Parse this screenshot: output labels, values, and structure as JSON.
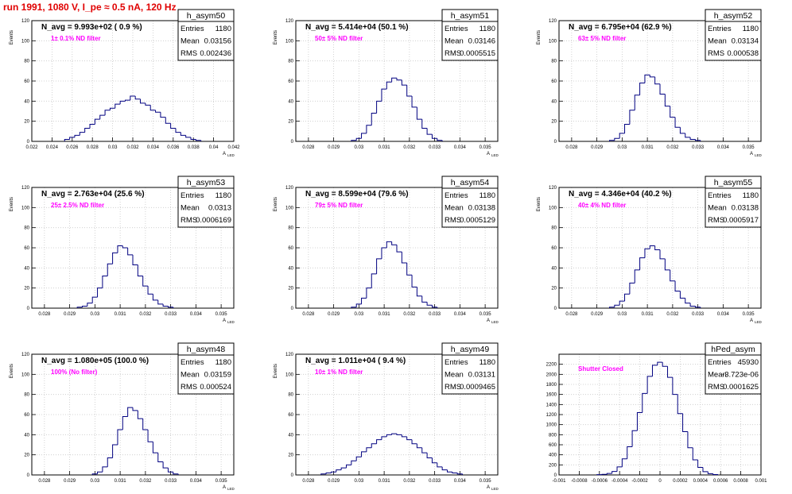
{
  "page": {
    "title": "run 1991,  1080 V, I_pe ≈ 0.5 nA, 120 Hz"
  },
  "colors": {
    "hist": "#000080",
    "magenta": "#ff00ff",
    "title_red": "#e00000",
    "grid": "#c8c8c8"
  },
  "chart_data": [
    {
      "type": "bar",
      "name": "h_asym50",
      "ylabel": "Events",
      "xlabel": "A_{LED}",
      "nav": "N_avg = 9.993e+02 ( 0.9 %)",
      "filter": "1± 0.1% ND filter",
      "stats": {
        "entries": "1180",
        "mean": "0.03156",
        "rms": "0.002436"
      },
      "xlim": [
        0.022,
        0.042
      ],
      "ylim": [
        0,
        120
      ],
      "xticks": [
        "0.022",
        "0.024",
        "0.026",
        "0.028",
        "0.03",
        "0.032",
        "0.034",
        "0.036",
        "0.038",
        "0.04",
        "0.042"
      ],
      "yticks": [
        "0",
        "20",
        "40",
        "60",
        "80",
        "100",
        "120"
      ],
      "x": [
        0.0255,
        0.026,
        0.0265,
        0.027,
        0.0275,
        0.028,
        0.0285,
        0.029,
        0.0295,
        0.03,
        0.0305,
        0.031,
        0.0315,
        0.032,
        0.0325,
        0.033,
        0.0335,
        0.034,
        0.0345,
        0.035,
        0.0355,
        0.036,
        0.0365,
        0.037,
        0.0375,
        0.038,
        0.0385
      ],
      "values": [
        2,
        4,
        6,
        9,
        13,
        17,
        22,
        26,
        31,
        33,
        37,
        40,
        41,
        45,
        42,
        38,
        36,
        31,
        29,
        24,
        18,
        13,
        9,
        6,
        4,
        2,
        1
      ]
    },
    {
      "type": "bar",
      "name": "h_asym51",
      "ylabel": "Events",
      "xlabel": "A_{LED}",
      "nav": "N_avg = 5.414e+04 (50.1 %)",
      "filter": "50± 5% ND filter",
      "stats": {
        "entries": "1180",
        "mean": "0.03146",
        "rms": "0.0005515"
      },
      "xlim": [
        0.0275,
        0.0355
      ],
      "ylim": [
        0,
        120
      ],
      "xticks": [
        "0.028",
        "0.029",
        "0.03",
        "0.031",
        "0.032",
        "0.033",
        "0.034",
        "0.035"
      ],
      "yticks": [
        "0",
        "20",
        "40",
        "60",
        "80",
        "100",
        "120"
      ],
      "x": [
        0.0298,
        0.03,
        0.0302,
        0.0304,
        0.0306,
        0.0308,
        0.031,
        0.0312,
        0.0314,
        0.0316,
        0.0318,
        0.032,
        0.0322,
        0.0324,
        0.0326,
        0.0328,
        0.033,
        0.0332
      ],
      "values": [
        1,
        3,
        8,
        16,
        28,
        40,
        52,
        59,
        63,
        61,
        56,
        45,
        34,
        22,
        13,
        7,
        3,
        1
      ]
    },
    {
      "type": "bar",
      "name": "h_asym52",
      "ylabel": "Events",
      "xlabel": "A_{LED}",
      "nav": "N_avg = 6.795e+04 (62.9 %)",
      "filter": "63± 5% ND filter",
      "stats": {
        "entries": "1180",
        "mean": "0.03134",
        "rms": "0.000538"
      },
      "xlim": [
        0.0275,
        0.0355
      ],
      "ylim": [
        0,
        120
      ],
      "xticks": [
        "0.028",
        "0.029",
        "0.03",
        "0.031",
        "0.032",
        "0.033",
        "0.034",
        "0.035"
      ],
      "yticks": [
        "0",
        "20",
        "40",
        "60",
        "80",
        "100",
        "120"
      ],
      "x": [
        0.0296,
        0.0298,
        0.03,
        0.0302,
        0.0304,
        0.0306,
        0.0308,
        0.031,
        0.0312,
        0.0314,
        0.0316,
        0.0318,
        0.032,
        0.0322,
        0.0324,
        0.0326,
        0.0328,
        0.033
      ],
      "values": [
        1,
        3,
        8,
        17,
        31,
        46,
        58,
        66,
        64,
        57,
        47,
        35,
        24,
        14,
        8,
        4,
        2,
        1
      ]
    },
    {
      "type": "bar",
      "name": "h_asym53",
      "ylabel": "Events",
      "xlabel": "A_{LED}",
      "nav": "N_avg = 2.763e+04 (25.6 %)",
      "filter": "25± 2.5% ND filter",
      "stats": {
        "entries": "1180",
        "mean": "0.0313",
        "rms": "0.0006169"
      },
      "xlim": [
        0.0275,
        0.0355
      ],
      "ylim": [
        0,
        120
      ],
      "xticks": [
        "0.028",
        "0.029",
        "0.03",
        "0.031",
        "0.032",
        "0.033",
        "0.034",
        "0.035"
      ],
      "yticks": [
        "0",
        "20",
        "40",
        "60",
        "80",
        "100",
        "120"
      ],
      "x": [
        0.0294,
        0.0296,
        0.0298,
        0.03,
        0.0302,
        0.0304,
        0.0306,
        0.0308,
        0.031,
        0.0312,
        0.0314,
        0.0316,
        0.0318,
        0.032,
        0.0322,
        0.0324,
        0.0326,
        0.0328,
        0.033
      ],
      "values": [
        1,
        2,
        5,
        11,
        20,
        32,
        44,
        55,
        62,
        60,
        53,
        43,
        32,
        22,
        14,
        8,
        4,
        2,
        1
      ]
    },
    {
      "type": "bar",
      "name": "h_asym54",
      "ylabel": "Events",
      "xlabel": "A_{LED}",
      "nav": "N_avg = 8.599e+04 (79.6 %)",
      "filter": "79± 5% ND filter",
      "stats": {
        "entries": "1180",
        "mean": "0.03138",
        "rms": "0.0005129"
      },
      "xlim": [
        0.0275,
        0.0355
      ],
      "ylim": [
        0,
        120
      ],
      "xticks": [
        "0.028",
        "0.029",
        "0.03",
        "0.031",
        "0.032",
        "0.033",
        "0.034",
        "0.035"
      ],
      "yticks": [
        "0",
        "20",
        "40",
        "60",
        "80",
        "100",
        "120"
      ],
      "x": [
        0.0298,
        0.03,
        0.0302,
        0.0304,
        0.0306,
        0.0308,
        0.031,
        0.0312,
        0.0314,
        0.0316,
        0.0318,
        0.032,
        0.0322,
        0.0324,
        0.0326,
        0.0328,
        0.033
      ],
      "values": [
        1,
        4,
        10,
        20,
        34,
        49,
        60,
        66,
        63,
        56,
        45,
        33,
        21,
        12,
        6,
        3,
        1
      ]
    },
    {
      "type": "bar",
      "name": "h_asym55",
      "ylabel": "Events",
      "xlabel": "A_{LED}",
      "nav": "N_avg = 4.346e+04 (40.2 %)",
      "filter": "40± 4% ND filter",
      "stats": {
        "entries": "1180",
        "mean": "0.03138",
        "rms": "0.0005917"
      },
      "xlim": [
        0.0275,
        0.0355
      ],
      "ylim": [
        0,
        120
      ],
      "xticks": [
        "0.028",
        "0.029",
        "0.03",
        "0.031",
        "0.032",
        "0.033",
        "0.034",
        "0.035"
      ],
      "yticks": [
        "0",
        "20",
        "40",
        "60",
        "80",
        "100",
        "120"
      ],
      "x": [
        0.0296,
        0.0298,
        0.03,
        0.0302,
        0.0304,
        0.0306,
        0.0308,
        0.031,
        0.0312,
        0.0314,
        0.0316,
        0.0318,
        0.032,
        0.0322,
        0.0324,
        0.0326,
        0.0328,
        0.033
      ],
      "values": [
        1,
        3,
        7,
        14,
        25,
        38,
        50,
        59,
        62,
        58,
        49,
        38,
        27,
        17,
        10,
        5,
        2,
        1
      ]
    },
    {
      "type": "bar",
      "name": "h_asym48",
      "ylabel": "Events",
      "xlabel": "A_{LED}",
      "nav": "N_avg = 1.080e+05 (100.0 %)",
      "filter": "100% (No filter)",
      "stats": {
        "entries": "1180",
        "mean": "0.03159",
        "rms": "0.000524"
      },
      "xlim": [
        0.0275,
        0.0355
      ],
      "ylim": [
        0,
        120
      ],
      "xticks": [
        "0.028",
        "0.029",
        "0.03",
        "0.031",
        "0.032",
        "0.033",
        "0.034",
        "0.035"
      ],
      "yticks": [
        "0",
        "20",
        "40",
        "60",
        "80",
        "100",
        "120"
      ],
      "x": [
        0.03,
        0.0302,
        0.0304,
        0.0306,
        0.0308,
        0.031,
        0.0312,
        0.0314,
        0.0316,
        0.0318,
        0.032,
        0.0322,
        0.0324,
        0.0326,
        0.0328,
        0.033,
        0.0332
      ],
      "values": [
        1,
        3,
        8,
        17,
        30,
        45,
        58,
        67,
        64,
        56,
        45,
        33,
        22,
        13,
        7,
        3,
        1
      ]
    },
    {
      "type": "bar",
      "name": "h_asym49",
      "ylabel": "Events",
      "xlabel": "A_{LED}",
      "nav": "N_avg = 1.011e+04 ( 9.4 %)",
      "filter": "10± 1% ND filter",
      "stats": {
        "entries": "1180",
        "mean": "0.03131",
        "rms": "0.0009465"
      },
      "xlim": [
        0.0275,
        0.0355
      ],
      "ylim": [
        0,
        120
      ],
      "xticks": [
        "0.028",
        "0.029",
        "0.03",
        "0.031",
        "0.032",
        "0.033",
        "0.034",
        "0.035"
      ],
      "yticks": [
        "0",
        "20",
        "40",
        "60",
        "80",
        "100",
        "120"
      ],
      "x": [
        0.0286,
        0.0288,
        0.029,
        0.0292,
        0.0294,
        0.0296,
        0.0298,
        0.03,
        0.0302,
        0.0304,
        0.0306,
        0.0308,
        0.031,
        0.0312,
        0.0314,
        0.0316,
        0.0318,
        0.032,
        0.0322,
        0.0324,
        0.0326,
        0.0328,
        0.033,
        0.0332,
        0.0334,
        0.0336,
        0.0338,
        0.034
      ],
      "values": [
        1,
        2,
        3,
        5,
        7,
        10,
        14,
        18,
        23,
        27,
        31,
        35,
        38,
        40,
        41,
        40,
        38,
        35,
        31,
        27,
        22,
        17,
        12,
        8,
        5,
        3,
        2,
        1
      ]
    },
    {
      "type": "bar",
      "name": "hPed_asym",
      "ylabel": "",
      "xlabel": "",
      "nav": "",
      "filter": "Shutter Closed",
      "stats": {
        "entries": "45930",
        "mean": "-3.723e-06",
        "rms": "0.0001625"
      },
      "xlim": [
        -0.001,
        0.001
      ],
      "ylim": [
        0,
        2400
      ],
      "xticks": [
        "-0.001",
        "-0.0008",
        "-0.0006",
        "-0.0004",
        "-0.0002",
        "0",
        "0.0002",
        "0.0004",
        "0.0006",
        "0.0008",
        "0.001"
      ],
      "yticks": [
        "0",
        "200",
        "400",
        "600",
        "800",
        "1000",
        "1200",
        "1400",
        "1600",
        "1800",
        "2000",
        "2200"
      ],
      "x": [
        -0.0006,
        -0.00055,
        -0.0005,
        -0.00045,
        -0.0004,
        -0.00035,
        -0.0003,
        -0.00025,
        -0.0002,
        -0.00015,
        -0.0001,
        -5e-05,
        0,
        5e-05,
        0.0001,
        0.00015,
        0.0002,
        0.00025,
        0.0003,
        0.00035,
        0.0004,
        0.00045,
        0.0005,
        0.00055
      ],
      "values": [
        5,
        12,
        30,
        70,
        160,
        320,
        560,
        880,
        1240,
        1620,
        1960,
        2180,
        2240,
        2160,
        1940,
        1600,
        1220,
        860,
        540,
        300,
        150,
        65,
        25,
        8
      ]
    }
  ]
}
